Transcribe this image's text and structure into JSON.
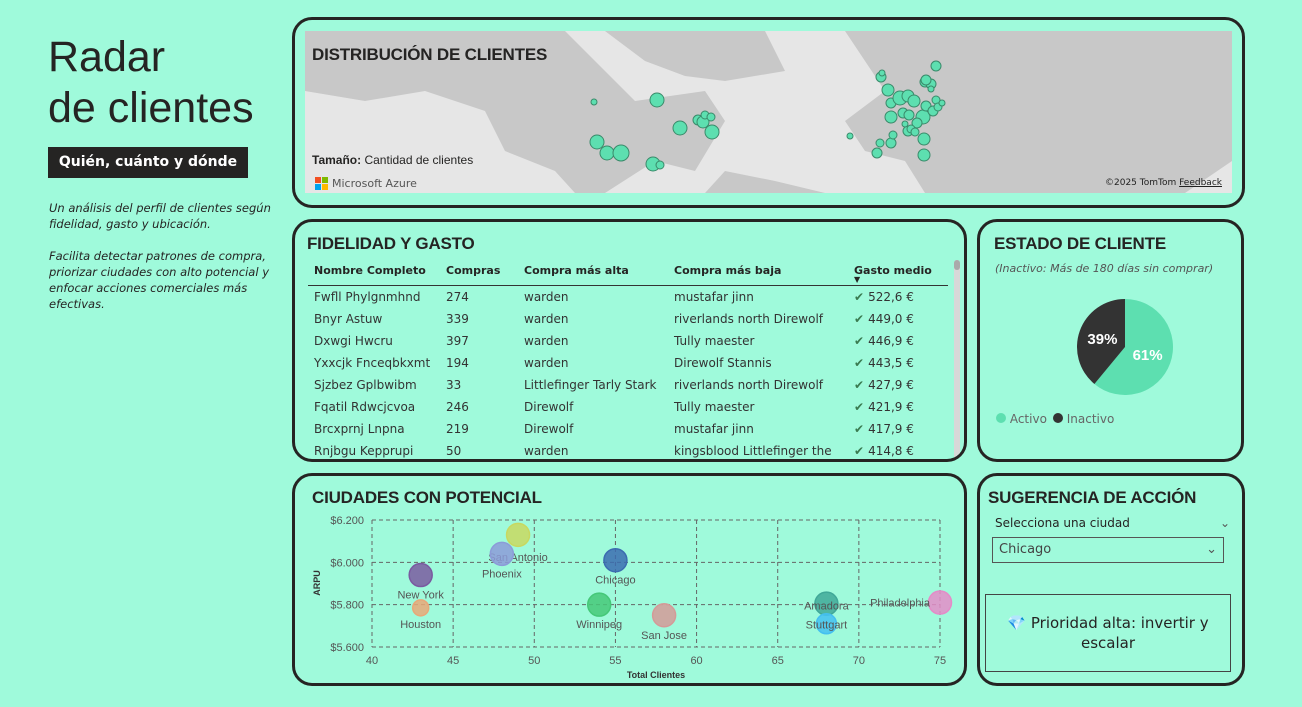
{
  "header": {
    "title_line1": "Radar",
    "title_line2": "de clientes",
    "badge": "Quién, cuánto y dónde",
    "description": [
      "Un análisis del perfil de clientes según fidelidad, gasto y ubicación.",
      "Facilita detectar patrones de compra, priorizar ciudades con alto potencial y enfocar acciones comerciales más efectivas."
    ]
  },
  "map": {
    "title": "DISTRIBUCIÓN DE CLIENTES",
    "size_label": "Tamaño:",
    "size_value": "Cantidad de clientes",
    "provider": "Microsoft Azure",
    "copyright": "©2025 TomTom",
    "feedback": "Feedback",
    "bubble_color": "#5ddfb0"
  },
  "table": {
    "title": "FIDELIDAD Y GASTO",
    "columns": [
      "Nombre Completo",
      "Compras",
      "Compra más alta",
      "Compra más baja",
      "Gasto medio"
    ],
    "rows": [
      [
        "Fwfll Phylgnmhnd",
        "274",
        "warden",
        "mustafar jinn",
        "522,6 €"
      ],
      [
        "Bnyr Astuw",
        "339",
        "warden",
        "riverlands north Direwolf",
        "449,0 €"
      ],
      [
        "Dxwgi Hwcru",
        "397",
        "warden",
        "Tully maester",
        "446,9 €"
      ],
      [
        "Yxxcjk Fnceqbkxmt",
        "194",
        "warden",
        "Direwolf Stannis",
        "443,5 €"
      ],
      [
        "Sjzbez Gplbwibm",
        "33",
        "Littlefinger Tarly Stark",
        "riverlands north Direwolf",
        "427,9 €"
      ],
      [
        "Fqatil Rdwcjcvoa",
        "246",
        "Direwolf",
        "Tully maester",
        "421,9 €"
      ],
      [
        "Brcxprnj Lnpna",
        "219",
        "Direwolf",
        "mustafar jinn",
        "417,9 €"
      ],
      [
        "Rnjbgu Kepprupi",
        "50",
        "warden",
        "kingsblood Littlefinger the",
        "414,8 €"
      ]
    ]
  },
  "status": {
    "title": "ESTADO DE CLIENTE",
    "subtitle": "(Inactivo: Más de 180 días sin comprar)",
    "slices": [
      {
        "label": "Activo",
        "value": 61,
        "text": "61%",
        "color": "#5ddfb0"
      },
      {
        "label": "Inactivo",
        "value": 39,
        "text": "39%",
        "color": "#333333"
      }
    ]
  },
  "chart_data": {
    "type": "scatter",
    "title": "CIUDADES CON POTENCIAL",
    "xlabel": "Total Clientes",
    "ylabel": "ARPU",
    "xlim": [
      40,
      75
    ],
    "ylim": [
      5600,
      6200
    ],
    "xticks": [
      "40",
      "45",
      "50",
      "55",
      "60",
      "65",
      "70",
      "75"
    ],
    "yticks": [
      "$5.600",
      "$5.800",
      "$6.000",
      "$6.200"
    ],
    "grid": true,
    "points": [
      {
        "name": "San Antonio",
        "x": 49,
        "y": 6130,
        "color": "#c8d860"
      },
      {
        "name": "Phoenix",
        "x": 48,
        "y": 6040,
        "color": "#8c9bd8"
      },
      {
        "name": "New York",
        "x": 43,
        "y": 5940,
        "color": "#7a5aa0"
      },
      {
        "name": "Houston",
        "x": 43,
        "y": 5785,
        "color": "#e8a878"
      },
      {
        "name": "Chicago",
        "x": 55,
        "y": 6010,
        "color": "#3b6cb0"
      },
      {
        "name": "Winnipeg",
        "x": 54,
        "y": 5800,
        "color": "#45c878"
      },
      {
        "name": "San Jose",
        "x": 58,
        "y": 5750,
        "color": "#d49a98"
      },
      {
        "name": "Amadora",
        "x": 68,
        "y": 5805,
        "color": "#40a898"
      },
      {
        "name": "Stuttgart",
        "x": 68,
        "y": 5710,
        "color": "#44bff0"
      },
      {
        "name": "Philadelphia",
        "x": 75,
        "y": 5810,
        "color": "#e48cc8"
      }
    ]
  },
  "action": {
    "title": "SUGERENCIA DE ACCIÓN",
    "select_label": "Selecciona una ciudad",
    "selected": "Chicago",
    "icon": "gem-icon",
    "message": "Prioridad alta: invertir y escalar"
  }
}
